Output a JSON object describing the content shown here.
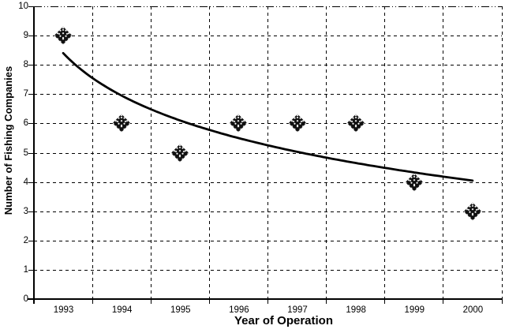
{
  "chart_data": {
    "type": "scatter",
    "title": "",
    "xlabel": "Year of Operation",
    "ylabel": "Number of Fishing Companies",
    "categories": [
      "1993",
      "1994",
      "1995",
      "1996",
      "1997",
      "1998",
      "1999",
      "2000"
    ],
    "series": [
      {
        "name": "Number of Fishing Companies",
        "values": [
          9,
          6,
          5,
          6,
          6,
          6,
          4,
          3
        ]
      }
    ],
    "ylim": [
      0,
      10
    ],
    "yticks": [
      "0",
      "1",
      "2",
      "3",
      "4",
      "5",
      "6",
      "7",
      "8",
      "9",
      "10"
    ],
    "grid": "dashed horizontal and vertical",
    "legend_position": "none",
    "marker": {
      "shape": "diamond",
      "style": "black with white speckle pattern"
    },
    "trendline": {
      "type": "logarithmic",
      "a": 8.401,
      "b": -2.094,
      "x_start": 1,
      "x_end": 8,
      "note": "y = a + b*ln(category_index), drawn from 1993 to 2000"
    }
  },
  "colors": {
    "background": "#ffffff",
    "ink": "#000000",
    "marker_fill": "#111111",
    "marker_speckle": "#ffffff",
    "trendline": "#000000"
  }
}
